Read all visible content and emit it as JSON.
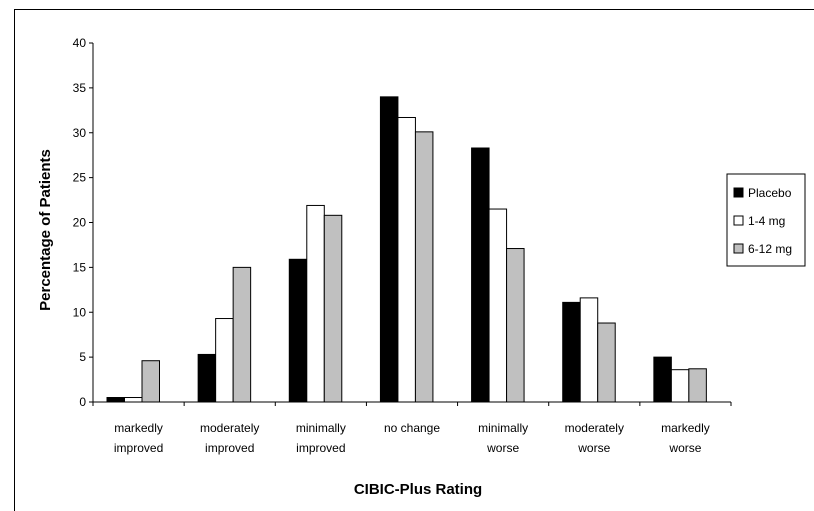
{
  "chart_data": {
    "type": "bar",
    "title": "",
    "xlabel": "CIBIC-Plus Rating",
    "ylabel": "Percentage of Patients",
    "ylim": [
      0,
      40
    ],
    "yticks": [
      0,
      5,
      10,
      15,
      20,
      25,
      30,
      35,
      40
    ],
    "grid": false,
    "legend_position": "right",
    "categories": [
      [
        "markedly",
        "improved"
      ],
      [
        "moderately",
        "improved"
      ],
      [
        "minimally",
        "improved"
      ],
      [
        "no change"
      ],
      [
        "minimally",
        "worse"
      ],
      [
        "moderately",
        "worse"
      ],
      [
        "markedly",
        "worse"
      ]
    ],
    "series": [
      {
        "name": "Placebo",
        "color": "#000000",
        "values": [
          0.5,
          5.3,
          15.9,
          34.0,
          28.3,
          11.1,
          5.0
        ]
      },
      {
        "name": "1-4 mg",
        "color": "#ffffff",
        "values": [
          0.5,
          9.3,
          21.9,
          31.7,
          21.5,
          11.6,
          3.6
        ]
      },
      {
        "name": "6-12 mg",
        "color": "#c0c0c0",
        "values": [
          4.6,
          15.0,
          20.8,
          30.1,
          17.1,
          8.8,
          3.7
        ]
      }
    ]
  }
}
